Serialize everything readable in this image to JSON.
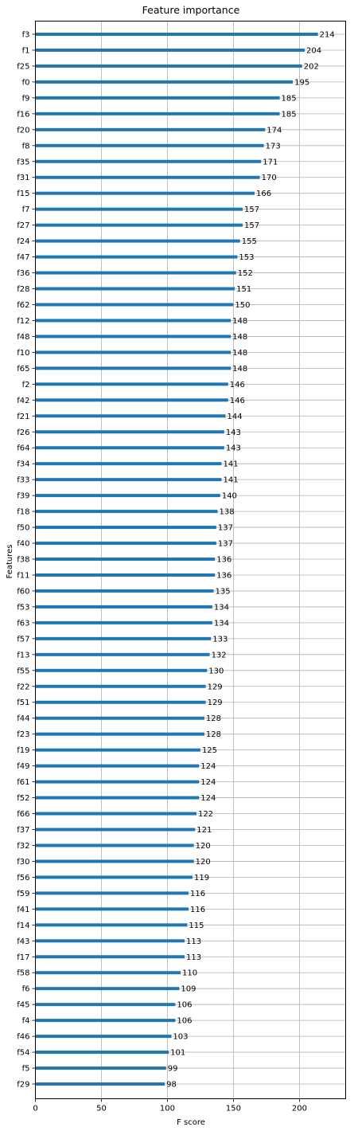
{
  "chart_data": {
    "type": "bar",
    "orientation": "horizontal",
    "title": "Feature importance",
    "xlabel": "F score",
    "ylabel": "Features",
    "xlim": [
      0,
      235
    ],
    "xticks": [
      0,
      50,
      100,
      150,
      200
    ],
    "grid": true,
    "bar_color": "#1f77b4",
    "categories": [
      "f3",
      "f1",
      "f25",
      "f0",
      "f9",
      "f16",
      "f20",
      "f8",
      "f35",
      "f31",
      "f15",
      "f7",
      "f27",
      "f24",
      "f47",
      "f36",
      "f28",
      "f62",
      "f12",
      "f48",
      "f10",
      "f65",
      "f2",
      "f42",
      "f21",
      "f26",
      "f64",
      "f34",
      "f33",
      "f39",
      "f18",
      "f50",
      "f40",
      "f38",
      "f11",
      "f60",
      "f53",
      "f63",
      "f57",
      "f13",
      "f55",
      "f22",
      "f51",
      "f44",
      "f23",
      "f19",
      "f49",
      "f61",
      "f52",
      "f66",
      "f37",
      "f32",
      "f30",
      "f56",
      "f59",
      "f41",
      "f14",
      "f43",
      "f17",
      "f58",
      "f6",
      "f45",
      "f4",
      "f46",
      "f54",
      "f5",
      "f29"
    ],
    "values": [
      214,
      204,
      202,
      195,
      185,
      185,
      174,
      173,
      171,
      170,
      166,
      157,
      157,
      155,
      153,
      152,
      151,
      150,
      148,
      148,
      148,
      148,
      146,
      146,
      144,
      143,
      143,
      141,
      141,
      140,
      138,
      137,
      137,
      136,
      136,
      135,
      134,
      134,
      133,
      132,
      130,
      129,
      129,
      128,
      128,
      125,
      124,
      124,
      124,
      122,
      121,
      120,
      120,
      119,
      116,
      116,
      115,
      113,
      113,
      110,
      109,
      106,
      106,
      103,
      101,
      99,
      98
    ]
  }
}
